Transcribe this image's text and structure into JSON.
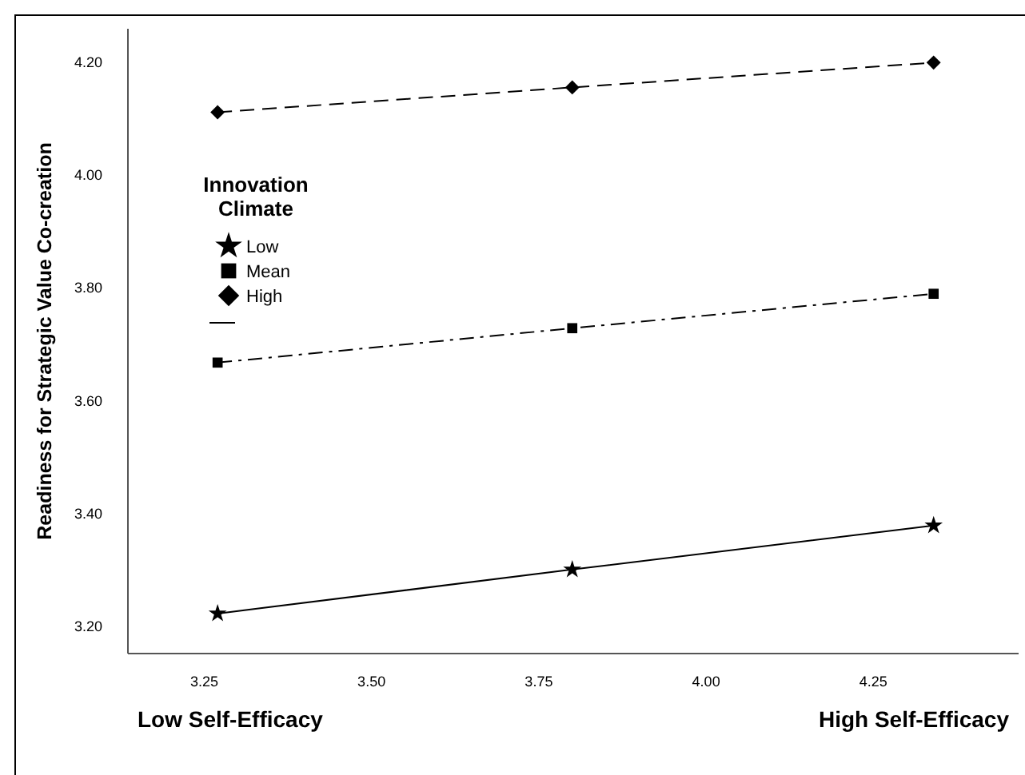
{
  "chart_data": {
    "type": "line",
    "ylabel": "Readiness for Strategic Value Co-creation",
    "legend_title": "Innovation Climate",
    "x": [
      3.27,
      3.8,
      4.34
    ],
    "series": [
      {
        "name": "Low",
        "color": "#000000",
        "values": [
          3.223,
          3.301,
          3.379
        ],
        "marker": "star",
        "line_style": "solid"
      },
      {
        "name": "Mean",
        "color": "#000000",
        "values": [
          3.668,
          3.729,
          3.79
        ],
        "marker": "square",
        "line_style": "dashdot"
      },
      {
        "name": "High",
        "color": "#000000",
        "values": [
          4.112,
          4.156,
          4.2
        ],
        "marker": "diamond",
        "line_style": "dashed"
      }
    ],
    "xlim": [
      3.136,
      4.467
    ],
    "xticks": [
      {
        "value": 3.25,
        "label": "3.25"
      },
      {
        "value": 3.5,
        "label": "3.50"
      },
      {
        "value": 3.75,
        "label": "3.75"
      },
      {
        "value": 4.0,
        "label": "4.00"
      },
      {
        "value": 4.25,
        "label": "4.25"
      }
    ],
    "ylim": [
      3.152,
      4.26
    ],
    "yticks": [
      {
        "value": 3.2,
        "label": "3.20"
      },
      {
        "value": 3.4,
        "label": "3.40"
      },
      {
        "value": 3.6,
        "label": "3.60"
      },
      {
        "value": 3.8,
        "label": "3.80"
      },
      {
        "value": 4.0,
        "label": "4.00"
      },
      {
        "value": 4.2,
        "label": "4.20"
      }
    ],
    "grid": false,
    "legend": "left",
    "annotations": [
      "Low Self-Efficacy",
      "High Self-Efficacy"
    ]
  }
}
